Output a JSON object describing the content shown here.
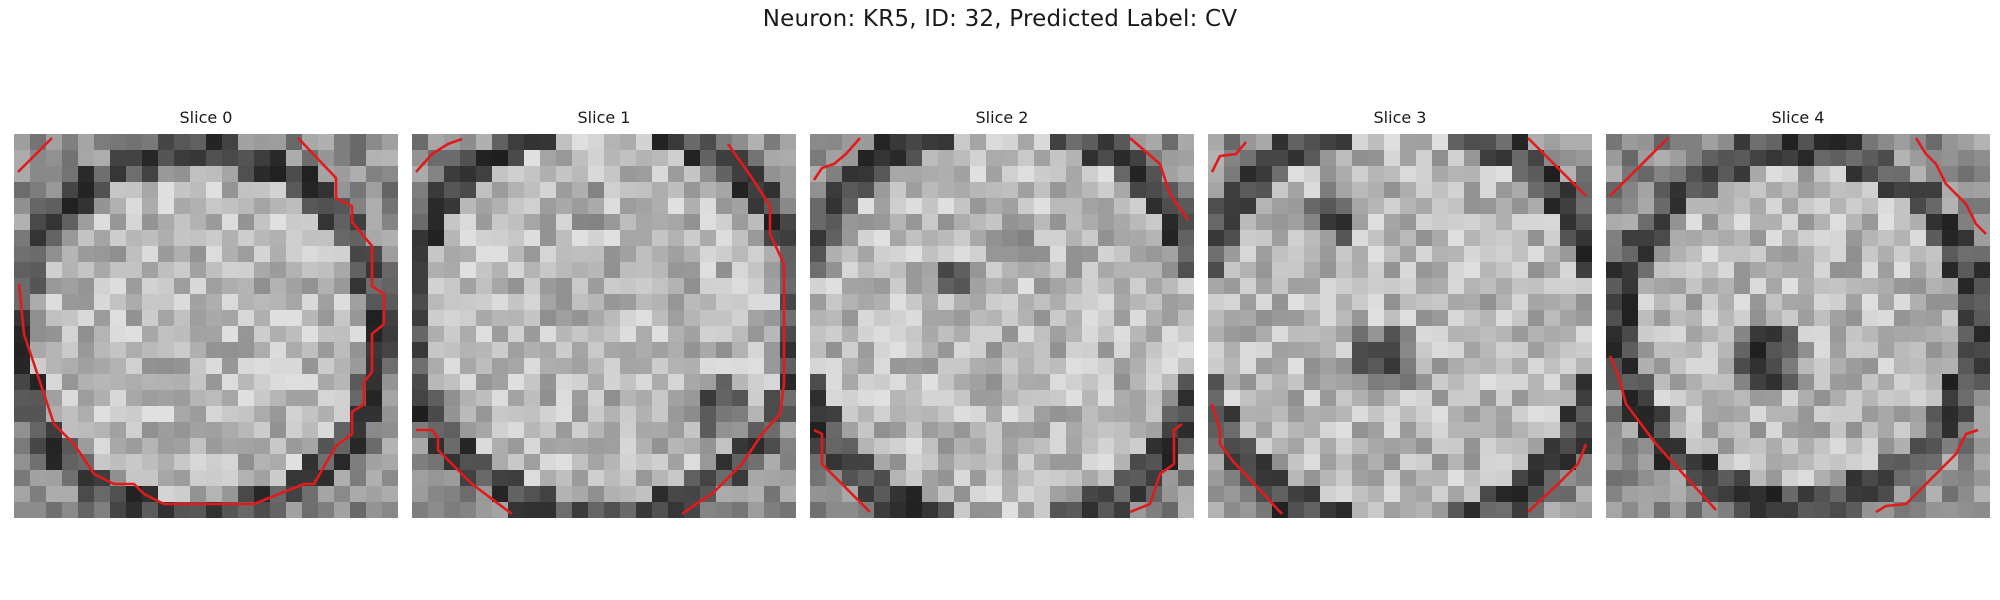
{
  "figure": {
    "title": "Neuron: KR5, ID: 32, Predicted Label: CV"
  },
  "colors": {
    "contour": "#e31a1c",
    "background": "#ffffff"
  },
  "slices": [
    {
      "label": "Slice 0"
    },
    {
      "label": "Slice 1"
    },
    {
      "label": "Slice 2"
    },
    {
      "label": "Slice 3"
    },
    {
      "label": "Slice 4"
    }
  ]
}
